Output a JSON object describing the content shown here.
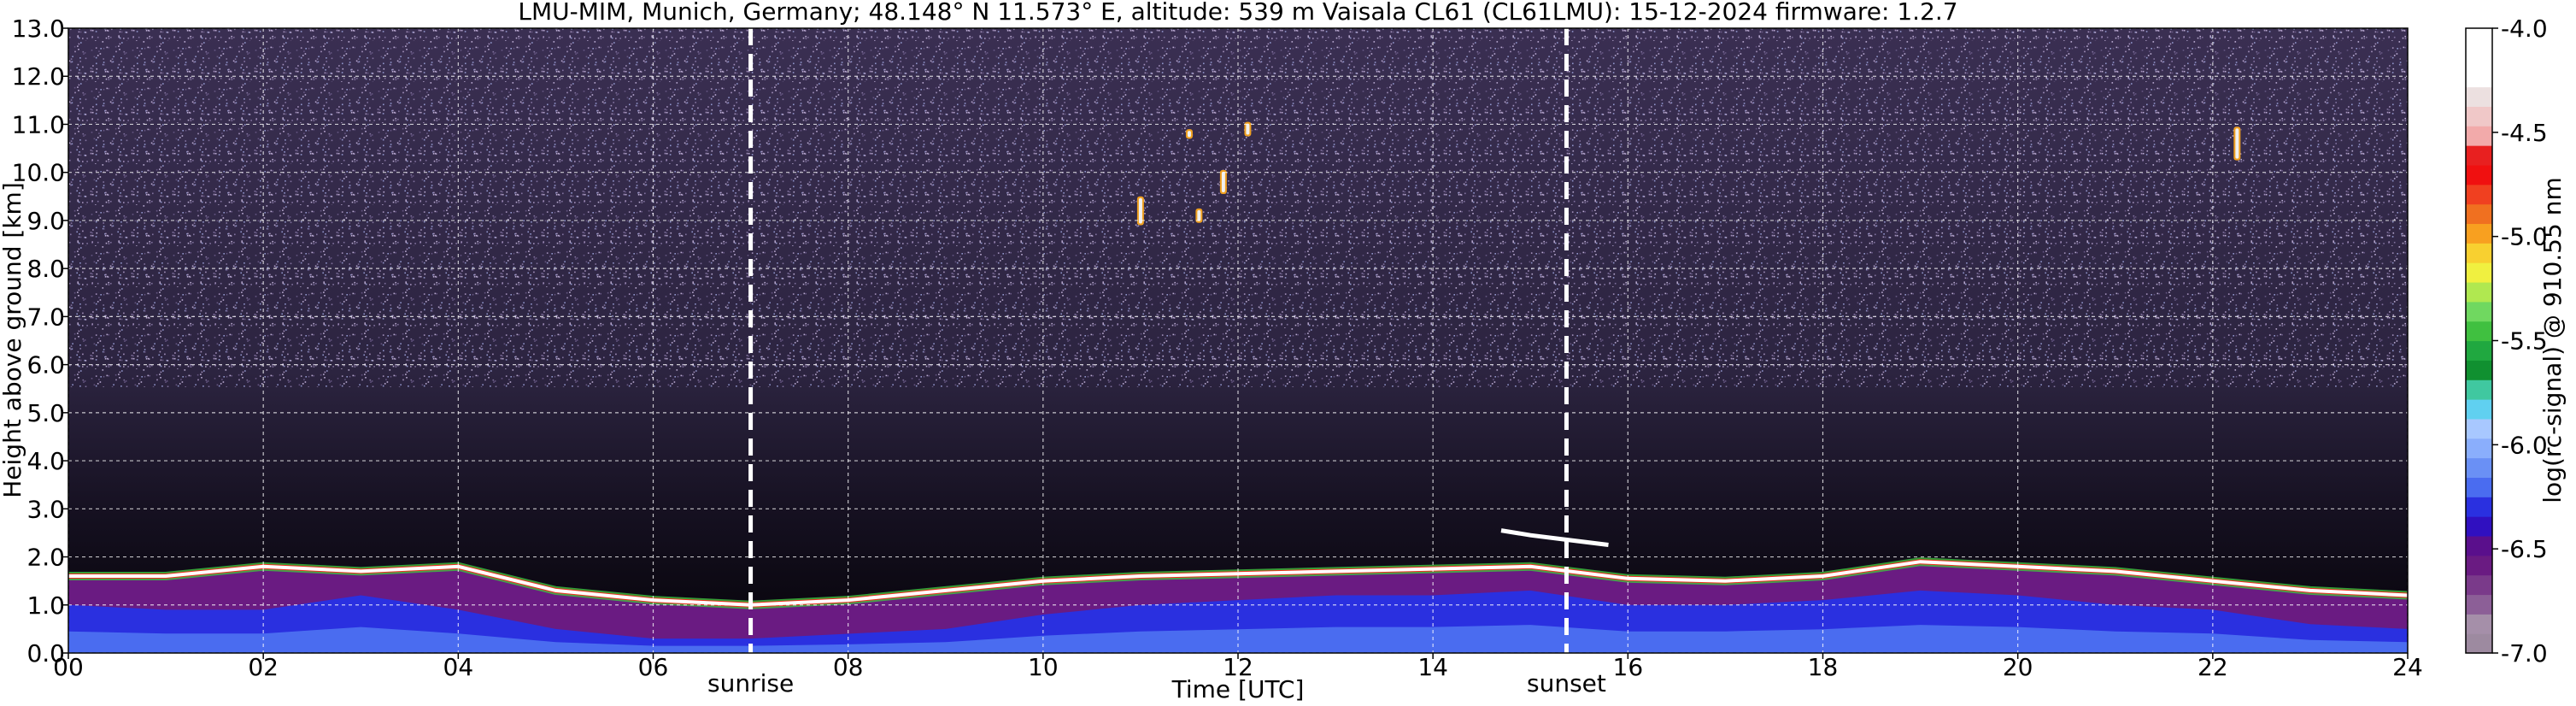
{
  "chart_data": {
    "type": "heatmap",
    "title": "LMU-MIM, Munich, Germany; 48.148° N 11.573° E, altitude: 539 m    Vaisala CL61 (CL61LMU): 15-12-2024    firmware: 1.2.7",
    "xlabel": "Time [UTC]",
    "ylabel": "Height above ground [km]",
    "colorbar_label": "log(rc-signal) @ 910.55 nm",
    "xlim": [
      0,
      24
    ],
    "ylim": [
      0,
      13
    ],
    "x_ticks": [
      {
        "value": 0,
        "label": "00"
      },
      {
        "value": 2,
        "label": "02"
      },
      {
        "value": 4,
        "label": "04"
      },
      {
        "value": 6,
        "label": "06"
      },
      {
        "value": 8,
        "label": "08"
      },
      {
        "value": 10,
        "label": "10"
      },
      {
        "value": 12,
        "label": "12"
      },
      {
        "value": 14,
        "label": "14"
      },
      {
        "value": 16,
        "label": "16"
      },
      {
        "value": 18,
        "label": "18"
      },
      {
        "value": 20,
        "label": "20"
      },
      {
        "value": 22,
        "label": "22"
      },
      {
        "value": 24,
        "label": "24"
      }
    ],
    "y_ticks": [
      "0.0",
      "1.0",
      "2.0",
      "3.0",
      "4.0",
      "5.0",
      "6.0",
      "7.0",
      "8.0",
      "9.0",
      "10.0",
      "11.0",
      "12.0",
      "13.0"
    ],
    "colorbar": {
      "range": [
        -7.0,
        -4.0
      ],
      "ticks": [
        "-7.0",
        "-6.5",
        "-6.0",
        "-5.5",
        "-5.0",
        "-4.5",
        "-4.0"
      ],
      "colors": [
        "#9d8aa0",
        "#a58fa9",
        "#8c5f97",
        "#7a3a8a",
        "#6a1b82",
        "#5a0f8c",
        "#3010c0",
        "#2a30e0",
        "#4a6cf0",
        "#6a90f5",
        "#8aaefc",
        "#a8c8ff",
        "#60d0f0",
        "#40c8a0",
        "#109030",
        "#20a840",
        "#40c040",
        "#70d860",
        "#b0e850",
        "#f0f040",
        "#f8d030",
        "#f8a020",
        "#f07020",
        "#f04020",
        "#f01010",
        "#e82020",
        "#f2aaaa",
        "#f0c8c8",
        "#ece0e0",
        "#ffffff",
        "#ffffff",
        "#ffffff"
      ]
    },
    "markers": [
      {
        "label": "sunrise",
        "x": 7.0
      },
      {
        "label": "sunset",
        "x": 15.37
      }
    ],
    "grid": true,
    "features": {
      "boundary_layer_top": [
        [
          0,
          1.6
        ],
        [
          1,
          1.6
        ],
        [
          2,
          1.8
        ],
        [
          3,
          1.7
        ],
        [
          4,
          1.8
        ],
        [
          5,
          1.3
        ],
        [
          6,
          1.1
        ],
        [
          7,
          1.0
        ],
        [
          8,
          1.1
        ],
        [
          9,
          1.3
        ],
        [
          10,
          1.5
        ],
        [
          11,
          1.6
        ],
        [
          12,
          1.65
        ],
        [
          13,
          1.7
        ],
        [
          14,
          1.75
        ],
        [
          15,
          1.8
        ],
        [
          16,
          1.55
        ],
        [
          17,
          1.5
        ],
        [
          18,
          1.6
        ],
        [
          19,
          1.9
        ],
        [
          20,
          1.8
        ],
        [
          21,
          1.7
        ],
        [
          22,
          1.5
        ],
        [
          23,
          1.3
        ],
        [
          24,
          1.2
        ]
      ],
      "aerosol_layer_top": [
        [
          0,
          1.0
        ],
        [
          1,
          0.9
        ],
        [
          2,
          0.9
        ],
        [
          3,
          1.2
        ],
        [
          4,
          0.9
        ],
        [
          5,
          0.5
        ],
        [
          6,
          0.3
        ],
        [
          7,
          0.3
        ],
        [
          8,
          0.4
        ],
        [
          9,
          0.5
        ],
        [
          10,
          0.8
        ],
        [
          11,
          1.0
        ],
        [
          12,
          1.1
        ],
        [
          13,
          1.2
        ],
        [
          14,
          1.2
        ],
        [
          15,
          1.3
        ],
        [
          16,
          1.0
        ],
        [
          17,
          1.0
        ],
        [
          18,
          1.1
        ],
        [
          19,
          1.3
        ],
        [
          20,
          1.2
        ],
        [
          21,
          1.0
        ],
        [
          22,
          0.9
        ],
        [
          23,
          0.6
        ],
        [
          24,
          0.5
        ]
      ],
      "cirrus_spots": [
        {
          "x": 11.0,
          "y": 9.2,
          "h": 0.6
        },
        {
          "x": 11.6,
          "y": 9.1,
          "h": 0.3
        },
        {
          "x": 11.85,
          "y": 9.8,
          "h": 0.5
        },
        {
          "x": 11.5,
          "y": 10.8,
          "h": 0.2
        },
        {
          "x": 12.1,
          "y": 10.9,
          "h": 0.3
        },
        {
          "x": 22.25,
          "y": 10.6,
          "h": 0.7
        }
      ],
      "elevated_layer": [
        [
          14.7,
          2.55
        ],
        [
          15.0,
          2.45
        ],
        [
          15.4,
          2.35
        ],
        [
          15.8,
          2.25
        ]
      ]
    }
  }
}
